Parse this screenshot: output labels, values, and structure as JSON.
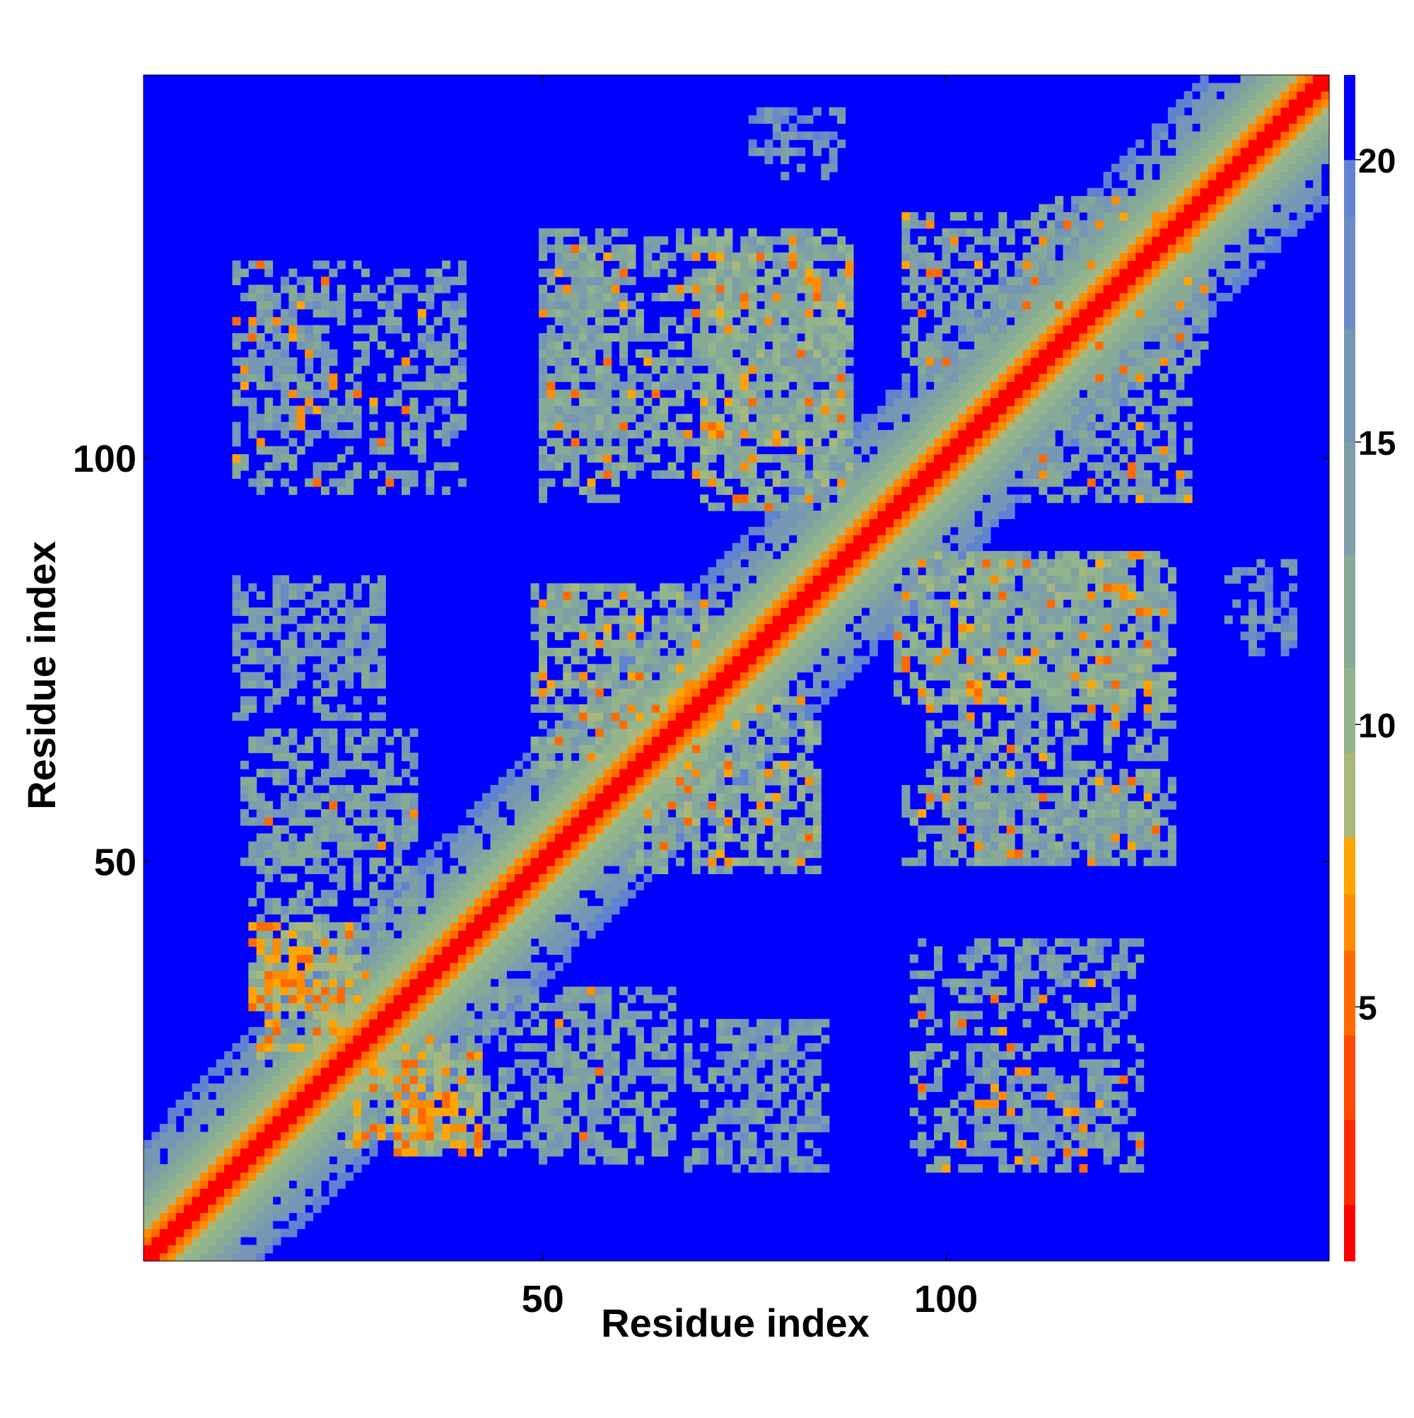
{
  "chart_data": {
    "type": "heatmap",
    "title": "",
    "xlabel": "Residue index",
    "ylabel": "Residue index",
    "n_residues": 147,
    "xlim": [
      1,
      147
    ],
    "ylim": [
      1,
      147
    ],
    "x_ticks": [
      50,
      100
    ],
    "y_ticks": [
      50,
      100
    ],
    "colorbar": {
      "ticks": [
        5,
        10,
        15,
        20
      ],
      "range": [
        0.5,
        21.5
      ],
      "steps": [
        {
          "max": 1.5,
          "color": "#ff0000"
        },
        {
          "max": 3.0,
          "color": "#ff2a00"
        },
        {
          "max": 4.5,
          "color": "#ff4800"
        },
        {
          "max": 6.0,
          "color": "#ff6a00"
        },
        {
          "max": 7.0,
          "color": "#ff8c00"
        },
        {
          "max": 8.0,
          "color": "#ffa500"
        },
        {
          "max": 9.5,
          "color": "#a8b87a"
        },
        {
          "max": 11.0,
          "color": "#93b48c"
        },
        {
          "max": 13.0,
          "color": "#86aa96"
        },
        {
          "max": 15.0,
          "color": "#7e9fa8"
        },
        {
          "max": 17.0,
          "color": "#7596b4"
        },
        {
          "max": 19.0,
          "color": "#6c8cc4"
        },
        {
          "max": 20.0,
          "color": "#5f83d0"
        },
        {
          "max": 99,
          "color": "#0000ff"
        }
      ]
    },
    "background_value": 21,
    "band": [
      {
        "d_max": 1,
        "value": 1
      },
      {
        "d_max": 2,
        "value": 5
      },
      {
        "d_max": 3,
        "value": 7
      },
      {
        "d_max": 4,
        "value": 8.5
      },
      {
        "d_max": 6,
        "value": 10
      },
      {
        "d_max": 8,
        "value": 12
      },
      {
        "d_max": 10,
        "value": 14
      },
      {
        "d_max": 13,
        "value": 17
      },
      {
        "d_max": 15,
        "value": 19.5
      }
    ],
    "contact_regions": [
      {
        "x": [
          14,
          24
        ],
        "y": [
          103,
          122
        ],
        "density": 0.45,
        "value": 16,
        "hot": 0.06
      },
      {
        "x": [
          31,
          40
        ],
        "y": [
          103,
          122
        ],
        "density": 0.25,
        "value": 17,
        "hot": 0
      },
      {
        "x": [
          50,
          60
        ],
        "y": [
          100,
          128
        ],
        "density": 0.6,
        "value": 14,
        "hot": 0.04
      },
      {
        "x": [
          63,
          88
        ],
        "y": [
          98,
          128
        ],
        "density": 0.6,
        "value": 13,
        "hot": 0.06
      },
      {
        "x": [
          95,
          132
        ],
        "y": [
          110,
          130
        ],
        "density": 0.55,
        "value": 14,
        "hot": 0.05
      },
      {
        "x": [
          76,
          87
        ],
        "y": [
          138,
          143
        ],
        "density": 0.4,
        "value": 17,
        "hot": 0
      },
      {
        "x": [
          12,
          30
        ],
        "y": [
          72,
          85
        ],
        "density": 0.4,
        "value": 15,
        "hot": 0
      },
      {
        "x": [
          13,
          34
        ],
        "y": [
          50,
          66
        ],
        "density": 0.45,
        "value": 14,
        "hot": 0.02
      },
      {
        "x": [
          49,
          62
        ],
        "y": [
          60,
          84
        ],
        "density": 0.5,
        "value": 13,
        "hot": 0.04
      },
      {
        "x": [
          62,
          84
        ],
        "y": [
          50,
          70
        ],
        "density": 0.5,
        "value": 12,
        "hot": 0.05
      },
      {
        "x": [
          94,
          126
        ],
        "y": [
          70,
          88
        ],
        "density": 0.6,
        "value": 12,
        "hot": 0.08
      },
      {
        "x": [
          95,
          126
        ],
        "y": [
          50,
          62
        ],
        "density": 0.5,
        "value": 13,
        "hot": 0.05
      },
      {
        "x": [
          135,
          140
        ],
        "y": [
          78,
          86
        ],
        "density": 0.35,
        "value": 17,
        "hot": 0
      },
      {
        "x": [
          14,
          26
        ],
        "y": [
          32,
          42
        ],
        "density": 0.7,
        "value": 10,
        "hot": 0.25
      },
      {
        "x": [
          26,
          38
        ],
        "y": [
          15,
          28
        ],
        "density": 0.6,
        "value": 10,
        "hot": 0.2
      },
      {
        "x": [
          40,
          58
        ],
        "y": [
          14,
          34
        ],
        "density": 0.45,
        "value": 14,
        "hot": 0.02
      },
      {
        "x": [
          68,
          84
        ],
        "y": [
          12,
          30
        ],
        "density": 0.4,
        "value": 15,
        "hot": 0
      },
      {
        "x": [
          96,
          124
        ],
        "y": [
          12,
          40
        ],
        "density": 0.35,
        "value": 14,
        "hot": 0.06
      }
    ]
  }
}
